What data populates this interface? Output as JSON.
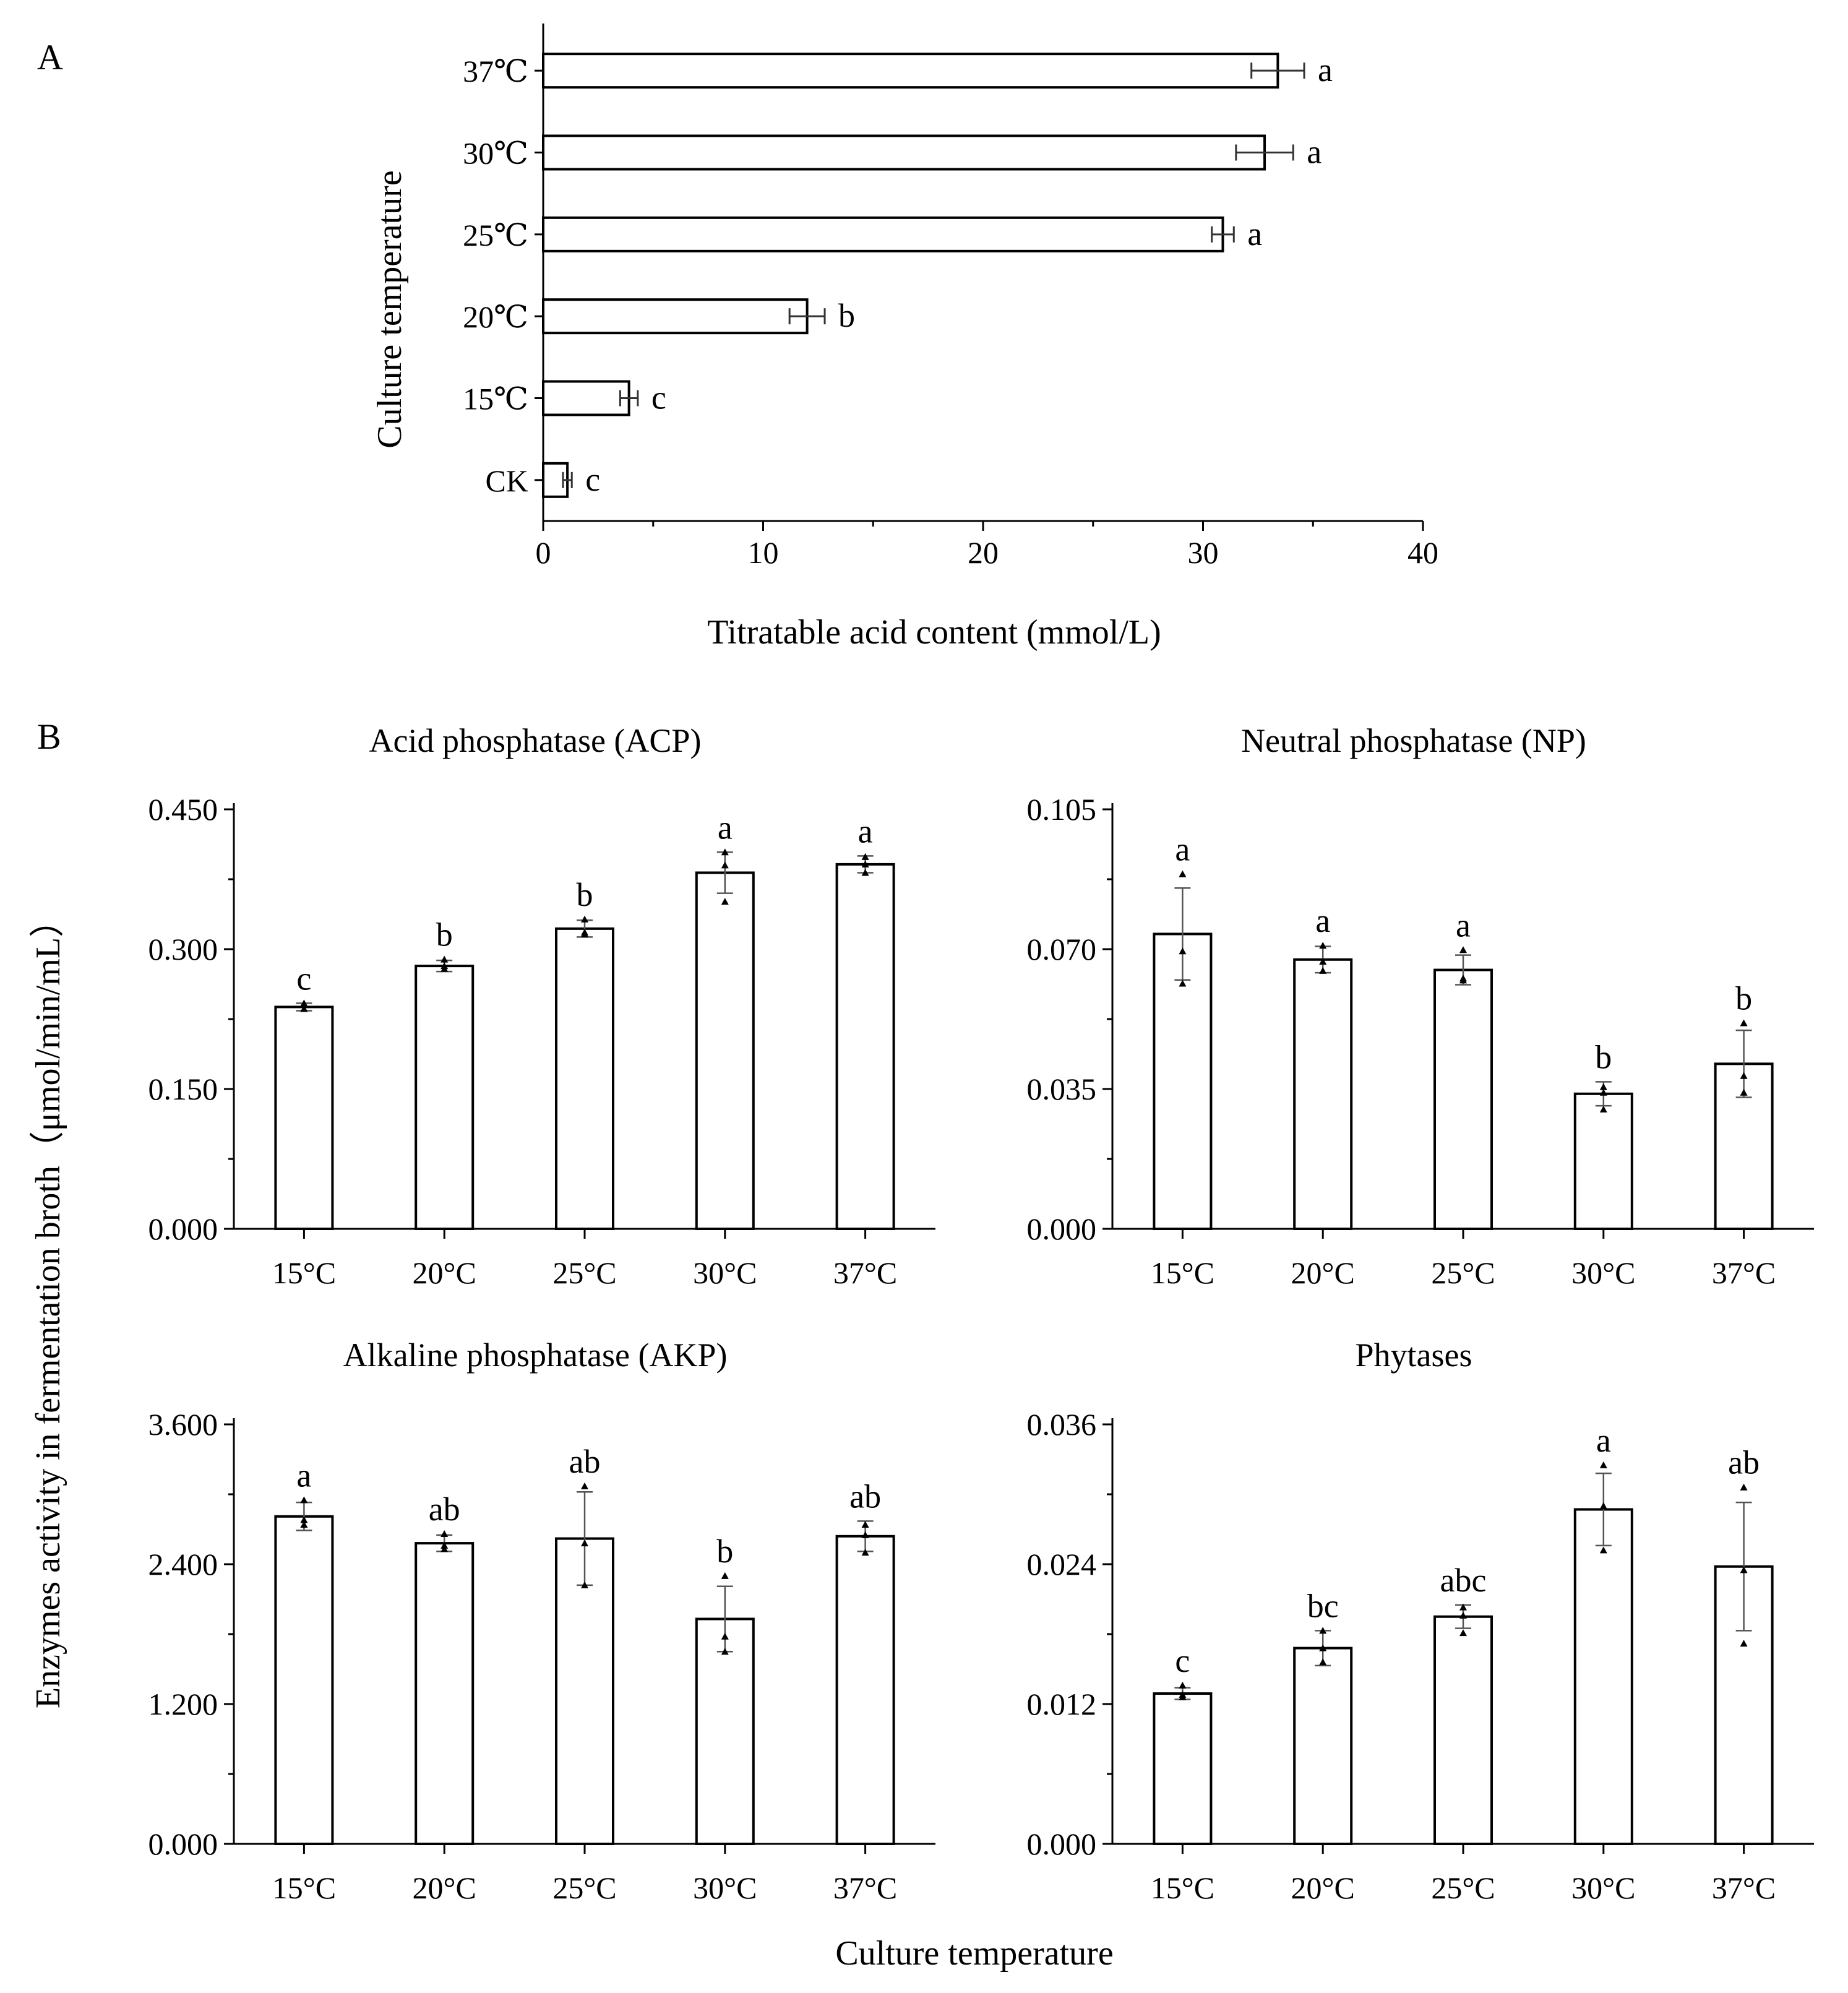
{
  "figure_labels": {
    "panel_a": "A",
    "panel_b": "B"
  },
  "shared_labels": {
    "y_axis_b": "Enzymes activity in fermentation broth（μmol/min/mL）",
    "x_axis_b": "Culture temperature"
  },
  "chart_data": [
    {
      "id": "titratable",
      "type": "bar",
      "orientation": "horizontal",
      "title": "",
      "xlabel": "Titratable acid content (mmol/L)",
      "ylabel": "Culture temperature",
      "xlim": [
        0,
        40
      ],
      "xticks": [
        "0",
        "10",
        "20",
        "30",
        "40"
      ],
      "categories": [
        "37℃",
        "30℃",
        "25℃",
        "20℃",
        "15℃",
        "CK"
      ],
      "values": [
        33.4,
        32.8,
        30.9,
        12.0,
        3.9,
        1.1
      ],
      "errors": [
        1.2,
        1.3,
        0.5,
        0.8,
        0.4,
        0.2
      ],
      "letters": [
        "a",
        "a",
        "a",
        "b",
        "c",
        "c"
      ]
    },
    {
      "id": "acp",
      "type": "bar",
      "title": "Acid phosphatase (ACP)",
      "categories": [
        "15°C",
        "20°C",
        "25°C",
        "30°C",
        "37°C"
      ],
      "ylim": [
        0,
        0.45
      ],
      "yticks": [
        "0.000",
        "0.150",
        "0.300",
        "0.450"
      ],
      "values": [
        0.238,
        0.282,
        0.322,
        0.382,
        0.391
      ],
      "errors": [
        0.004,
        0.006,
        0.009,
        0.022,
        0.009
      ],
      "points": [
        [
          0.242,
          0.236,
          0.236
        ],
        [
          0.289,
          0.282,
          0.279
        ],
        [
          0.332,
          0.318,
          0.316
        ],
        [
          0.404,
          0.39,
          0.351
        ],
        [
          0.399,
          0.391,
          0.382
        ]
      ],
      "letters": [
        "c",
        "b",
        "b",
        "a",
        "a"
      ]
    },
    {
      "id": "np",
      "type": "bar",
      "title": "Neutral phosphatase (NP)",
      "categories": [
        "15°C",
        "20°C",
        "25°C",
        "30°C",
        "37°C"
      ],
      "ylim": [
        0,
        0.105
      ],
      "yticks": [
        "0.000",
        "0.035",
        "0.070",
        "0.105"
      ],
      "values": [
        0.0738,
        0.0674,
        0.0648,
        0.0338,
        0.0413
      ],
      "errors": [
        0.0115,
        0.0033,
        0.0037,
        0.003,
        0.0084
      ],
      "points": [
        [
          0.0888,
          0.0695,
          0.0614
        ],
        [
          0.0709,
          0.0669,
          0.0646
        ],
        [
          0.0698,
          0.0627,
          0.0622
        ],
        [
          0.0355,
          0.0341,
          0.0299
        ],
        [
          0.0515,
          0.0383,
          0.0341
        ]
      ],
      "letters": [
        "a",
        "a",
        "a",
        "b",
        "b"
      ]
    },
    {
      "id": "akp",
      "type": "bar",
      "title": "Alkaline phosphatase (AKP)",
      "categories": [
        "15°C",
        "20°C",
        "25°C",
        "30°C",
        "37°C"
      ],
      "ylim": [
        0,
        3.6
      ],
      "yticks": [
        "0.000",
        "1.200",
        "2.400",
        "3.600"
      ],
      "values": [
        2.81,
        2.58,
        2.62,
        1.93,
        2.64
      ],
      "errors": [
        0.12,
        0.07,
        0.4,
        0.28,
        0.13
      ],
      "points": [
        [
          2.95,
          2.78,
          2.74
        ],
        [
          2.66,
          2.56,
          2.53
        ],
        [
          3.07,
          2.58,
          2.22
        ],
        [
          2.3,
          1.78,
          1.65
        ],
        [
          2.74,
          2.65,
          2.5
        ]
      ],
      "letters": [
        "a",
        "ab",
        "ab",
        "b",
        "ab"
      ]
    },
    {
      "id": "phytase",
      "type": "bar",
      "title": "Phytases",
      "categories": [
        "15°C",
        "20°C",
        "25°C",
        "30°C",
        "37°C"
      ],
      "ylim": [
        0,
        0.036
      ],
      "yticks": [
        "0.000",
        "0.012",
        "0.024",
        "0.036"
      ],
      "values": [
        0.0129,
        0.0168,
        0.0195,
        0.0287,
        0.0238
      ],
      "errors": [
        0.0005,
        0.0015,
        0.001,
        0.0031,
        0.0055
      ],
      "points": [
        [
          0.0136,
          0.0128,
          0.0126
        ],
        [
          0.0183,
          0.0168,
          0.0156
        ],
        [
          0.0203,
          0.0196,
          0.0181
        ],
        [
          0.0325,
          0.029,
          0.0252
        ],
        [
          0.0306,
          0.0235,
          0.0172
        ]
      ],
      "letters": [
        "c",
        "bc",
        "abc",
        "a",
        "ab"
      ]
    }
  ]
}
